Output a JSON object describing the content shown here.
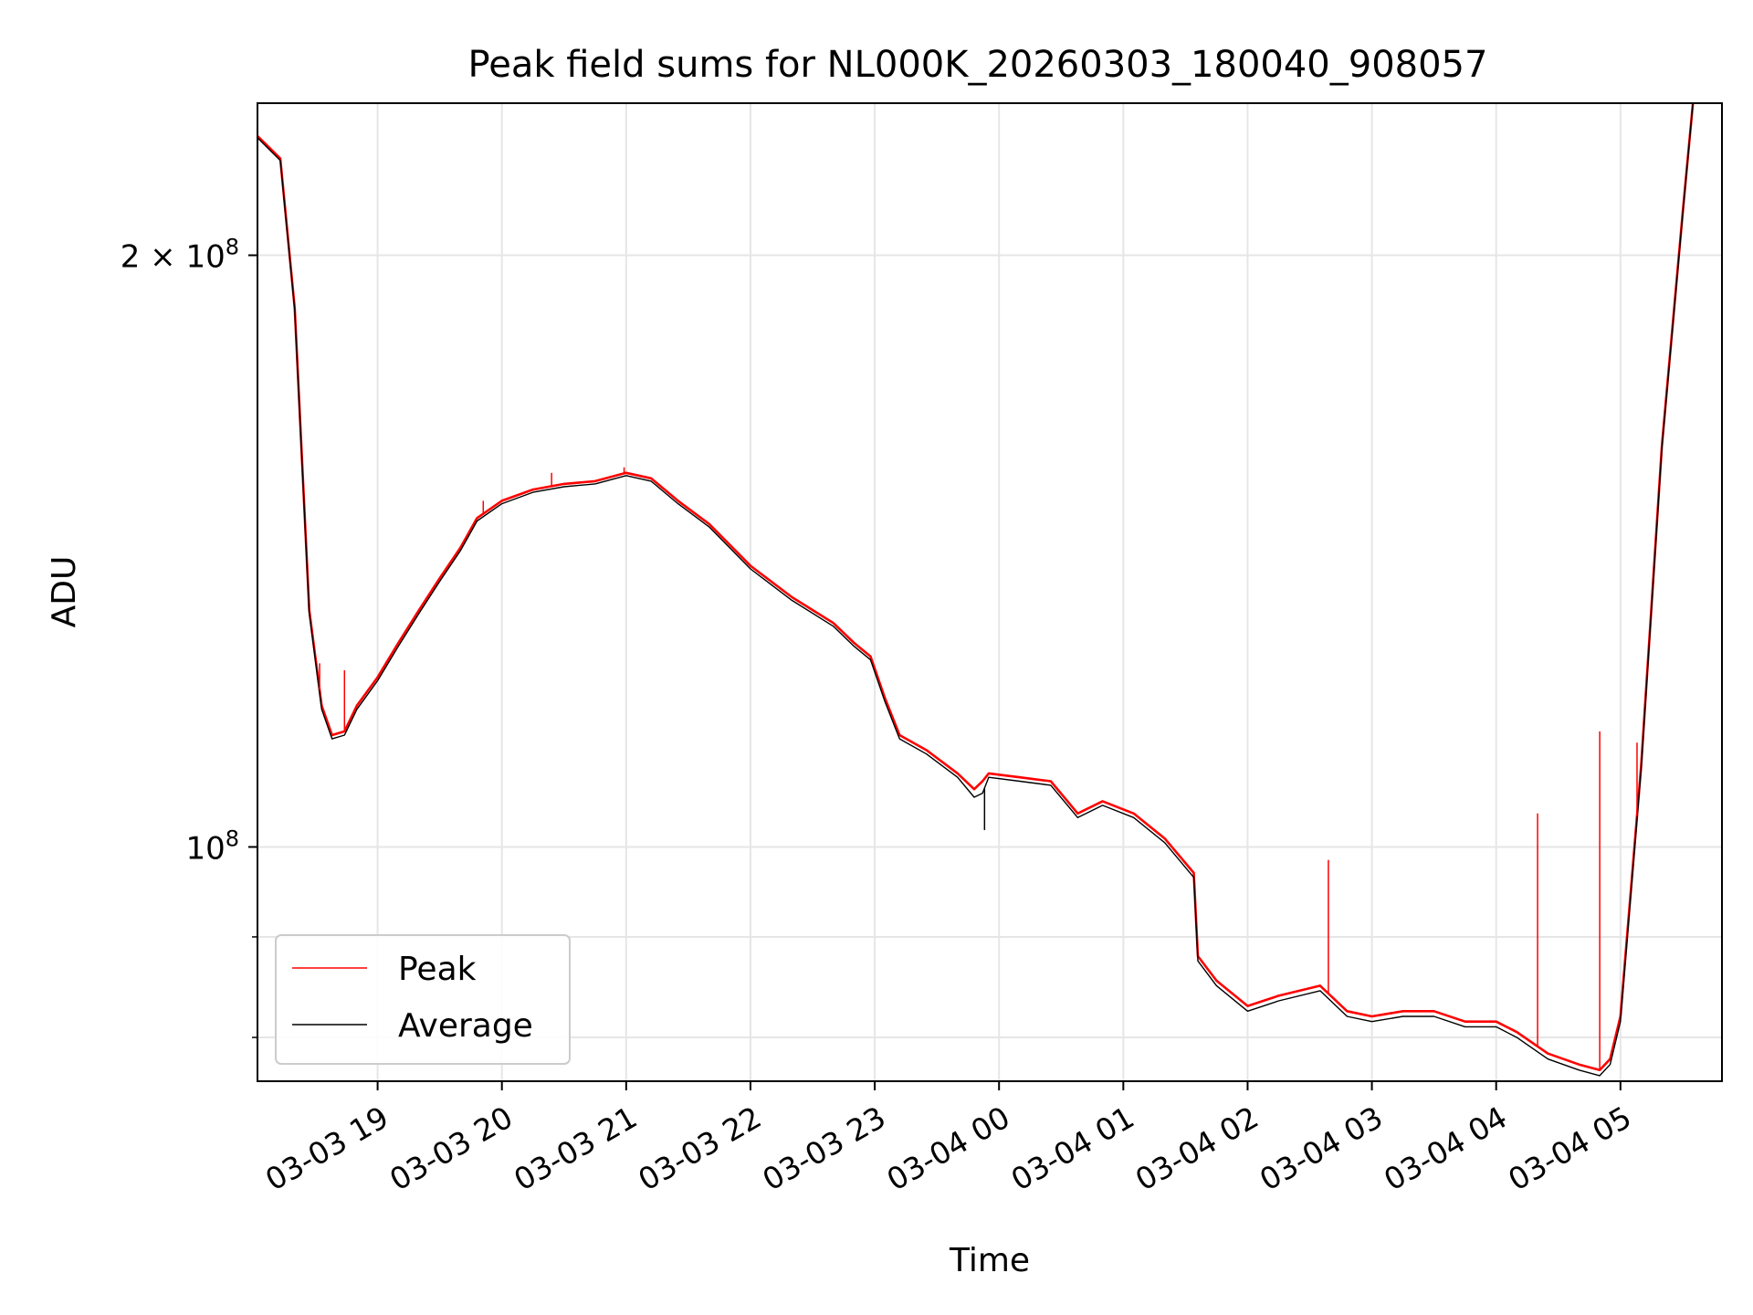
{
  "chart_data": {
    "type": "line",
    "title": "Peak field sums for NL000K_20260303_180040_908057",
    "xlabel": "Time",
    "ylabel": "ADU",
    "yscale": "log",
    "ylim": [
      76000000,
      239000000
    ],
    "xlim": [
      "2026-03-03 18:02",
      "2026-03-04 05:49"
    ],
    "grid": true,
    "legend_position": "lower-left",
    "x_ticks": [
      {
        "value": "2026-03-03 19:00",
        "label": "03-03 19"
      },
      {
        "value": "2026-03-03 20:00",
        "label": "03-03 20"
      },
      {
        "value": "2026-03-03 21:00",
        "label": "03-03 21"
      },
      {
        "value": "2026-03-03 22:00",
        "label": "03-03 22"
      },
      {
        "value": "2026-03-03 23:00",
        "label": "03-03 23"
      },
      {
        "value": "2026-03-04 00:00",
        "label": "03-04 00"
      },
      {
        "value": "2026-03-04 01:00",
        "label": "03-04 01"
      },
      {
        "value": "2026-03-04 02:00",
        "label": "03-04 02"
      },
      {
        "value": "2026-03-04 03:00",
        "label": "03-04 03"
      },
      {
        "value": "2026-03-04 04:00",
        "label": "03-04 04"
      },
      {
        "value": "2026-03-04 05:00",
        "label": "03-04 05"
      }
    ],
    "y_ticks": [
      {
        "value": 100000000,
        "label": "10^8",
        "base": "10",
        "exp": "8"
      },
      {
        "value": 200000000,
        "label": "2×10^8",
        "base": "2 × 10",
        "exp": "8"
      }
    ],
    "y_minor_ticks": [
      80000000,
      90000000
    ],
    "series": [
      {
        "name": "Peak",
        "color": "#ff0000",
        "x": [
          "2026-03-03 18:02",
          "2026-03-03 18:13",
          "2026-03-03 18:20",
          "2026-03-03 18:27",
          "2026-03-03 18:33",
          "2026-03-03 18:38",
          "2026-03-03 18:44",
          "2026-03-03 18:50",
          "2026-03-03 19:00",
          "2026-03-03 19:10",
          "2026-03-03 19:20",
          "2026-03-03 19:30",
          "2026-03-03 19:40",
          "2026-03-03 19:48",
          "2026-03-03 20:00",
          "2026-03-03 20:15",
          "2026-03-03 20:30",
          "2026-03-03 20:45",
          "2026-03-03 21:00",
          "2026-03-03 21:12",
          "2026-03-03 21:25",
          "2026-03-03 21:40",
          "2026-03-03 22:00",
          "2026-03-03 22:20",
          "2026-03-03 22:40",
          "2026-03-03 22:50",
          "2026-03-03 22:58",
          "2026-03-03 23:05",
          "2026-03-03 23:12",
          "2026-03-03 23:25",
          "2026-03-03 23:40",
          "2026-03-03 23:48",
          "2026-03-03 23:52",
          "2026-03-03 23:55",
          "2026-03-04 00:10",
          "2026-03-04 00:25",
          "2026-03-04 00:38",
          "2026-03-04 00:50",
          "2026-03-04 01:05",
          "2026-03-04 01:20",
          "2026-03-04 01:34",
          "2026-03-04 01:36",
          "2026-03-04 01:45",
          "2026-03-04 02:00",
          "2026-03-04 02:15",
          "2026-03-04 02:35",
          "2026-03-04 02:48",
          "2026-03-04 03:00",
          "2026-03-04 03:15",
          "2026-03-04 03:30",
          "2026-03-04 03:45",
          "2026-03-04 04:00",
          "2026-03-04 04:10",
          "2026-03-04 04:25",
          "2026-03-04 04:40",
          "2026-03-04 04:50",
          "2026-03-04 04:55",
          "2026-03-04 05:00",
          "2026-03-04 05:10",
          "2026-03-04 05:20",
          "2026-03-04 05:30",
          "2026-03-04 05:35"
        ],
        "values": [
          230000000,
          224000000,
          188000000,
          132000000,
          118000000,
          114000000,
          114500000,
          118000000,
          122000000,
          127000000,
          132000000,
          137000000,
          142000000,
          147000000,
          150000000,
          152000000,
          153000000,
          153500000,
          155000000,
          154000000,
          150000000,
          146000000,
          139000000,
          134000000,
          130000000,
          127000000,
          125000000,
          119000000,
          114000000,
          112000000,
          109000000,
          107000000,
          108000000,
          109000000,
          108500000,
          108000000,
          104000000,
          105500000,
          104000000,
          101000000,
          97000000,
          88000000,
          85500000,
          83000000,
          84000000,
          85000000,
          82500000,
          82000000,
          82500000,
          82500000,
          81500000,
          81500000,
          80500000,
          78500000,
          77500000,
          77000000,
          78000000,
          82000000,
          110000000,
          160000000,
          210000000,
          239000000
        ]
      },
      {
        "name": "Average",
        "color": "#000000",
        "x": [
          "2026-03-03 18:02",
          "2026-03-03 18:13",
          "2026-03-03 18:20",
          "2026-03-03 18:27",
          "2026-03-03 18:33",
          "2026-03-03 18:38",
          "2026-03-03 18:44",
          "2026-03-03 18:50",
          "2026-03-03 19:00",
          "2026-03-03 19:10",
          "2026-03-03 19:20",
          "2026-03-03 19:30",
          "2026-03-03 19:40",
          "2026-03-03 19:48",
          "2026-03-03 20:00",
          "2026-03-03 20:15",
          "2026-03-03 20:30",
          "2026-03-03 20:45",
          "2026-03-03 21:00",
          "2026-03-03 21:12",
          "2026-03-03 21:25",
          "2026-03-03 21:40",
          "2026-03-03 22:00",
          "2026-03-03 22:20",
          "2026-03-03 22:40",
          "2026-03-03 22:50",
          "2026-03-03 22:58",
          "2026-03-03 23:05",
          "2026-03-03 23:12",
          "2026-03-03 23:25",
          "2026-03-03 23:40",
          "2026-03-03 23:48",
          "2026-03-03 23:52",
          "2026-03-03 23:55",
          "2026-03-04 00:10",
          "2026-03-04 00:25",
          "2026-03-04 00:38",
          "2026-03-04 00:50",
          "2026-03-04 01:05",
          "2026-03-04 01:20",
          "2026-03-04 01:34",
          "2026-03-04 01:36",
          "2026-03-04 01:45",
          "2026-03-04 02:00",
          "2026-03-04 02:15",
          "2026-03-04 02:35",
          "2026-03-04 02:48",
          "2026-03-04 03:00",
          "2026-03-04 03:15",
          "2026-03-04 03:30",
          "2026-03-04 03:45",
          "2026-03-04 04:00",
          "2026-03-04 04:10",
          "2026-03-04 04:25",
          "2026-03-04 04:40",
          "2026-03-04 04:50",
          "2026-03-04 04:55",
          "2026-03-04 05:00",
          "2026-03-04 05:10",
          "2026-03-04 05:20",
          "2026-03-04 05:30",
          "2026-03-04 05:35"
        ],
        "values": [
          229500000,
          223500000,
          187500000,
          131500000,
          117500000,
          113500000,
          114000000,
          117500000,
          121500000,
          126500000,
          131500000,
          136500000,
          141500000,
          146500000,
          149500000,
          151500000,
          152500000,
          153000000,
          154500000,
          153500000,
          149500000,
          145500000,
          138500000,
          133500000,
          129500000,
          126500000,
          124500000,
          118500000,
          113500000,
          111500000,
          108500000,
          106000000,
          106500000,
          108500000,
          108000000,
          107500000,
          103500000,
          105000000,
          103500000,
          100500000,
          96500000,
          87500000,
          85000000,
          82500000,
          83500000,
          84500000,
          82000000,
          81500000,
          82000000,
          82000000,
          81000000,
          81000000,
          80000000,
          78000000,
          77000000,
          76500000,
          77500000,
          81500000,
          109500000,
          159500000,
          209500000,
          239000000
        ]
      }
    ],
    "annotations": [
      {
        "type": "spike",
        "series": "Peak",
        "x": "2026-03-03 18:32",
        "value": 124000000
      },
      {
        "type": "spike",
        "series": "Peak",
        "x": "2026-03-03 18:44",
        "value": 123000000
      },
      {
        "type": "spike",
        "series": "Peak",
        "x": "2026-03-03 19:51",
        "value": 150000000
      },
      {
        "type": "spike",
        "series": "Peak",
        "x": "2026-03-03 20:24",
        "value": 155000000
      },
      {
        "type": "spike",
        "series": "Peak",
        "x": "2026-03-03 20:59",
        "value": 156000000
      },
      {
        "type": "spike",
        "series": "Peak",
        "x": "2026-03-04 02:39",
        "value": 98500000
      },
      {
        "type": "spike",
        "series": "Peak",
        "x": "2026-03-04 04:20",
        "value": 104000000
      },
      {
        "type": "spike",
        "series": "Peak",
        "x": "2026-03-04 04:50",
        "value": 114500000
      },
      {
        "type": "spike",
        "series": "Peak",
        "x": "2026-03-04 05:08",
        "value": 113000000
      },
      {
        "type": "dip",
        "series": "Average",
        "x": "2026-03-03 23:53",
        "value": 102000000
      }
    ]
  }
}
